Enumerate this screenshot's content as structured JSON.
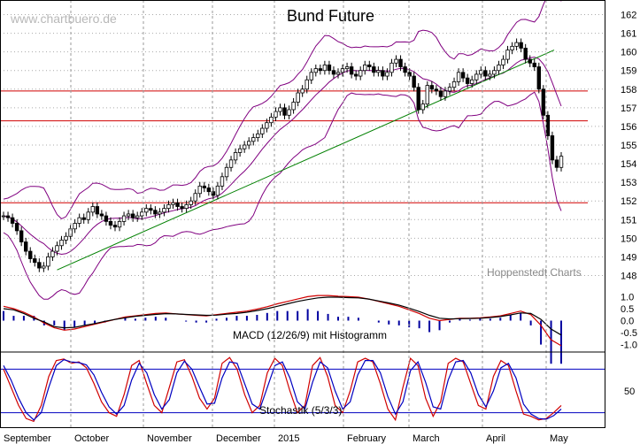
{
  "chart_data": [
    {
      "type": "candlestick",
      "title": "Bund Future",
      "watermark": "www.chartbuero.de",
      "credit": "Hoppenstedt Charts",
      "ylim": [
        147.5,
        162.5
      ],
      "y_ticks": [
        "148",
        "149",
        "150",
        "151",
        "152",
        "153",
        "154",
        "155",
        "156",
        "157",
        "158",
        "159",
        "160",
        "161",
        "162"
      ],
      "x_labels": [
        "September",
        "October",
        "November",
        "December",
        "2015",
        "February",
        "March",
        "April",
        "May"
      ],
      "horizontal_lines": [
        151.9,
        156.3,
        157.9
      ],
      "trendline": {
        "from": [
          0,
          148.1
        ],
        "to": [
          148,
          159.9
        ]
      },
      "trendline2": {
        "from": [
          12,
          148.3
        ],
        "to": [
          148,
          160.1
        ]
      },
      "ohlc_close": [
        151.2,
        151.1,
        150.8,
        150.4,
        149.8,
        149.3,
        148.9,
        148.7,
        148.4,
        148.5,
        149.0,
        149.3,
        149.6,
        149.9,
        150.1,
        150.5,
        150.8,
        151.1,
        151.0,
        151.4,
        151.7,
        151.3,
        151.2,
        150.9,
        150.7,
        150.6,
        150.9,
        151.2,
        151.3,
        151.1,
        151.2,
        151.4,
        151.6,
        151.5,
        151.3,
        151.4,
        151.6,
        151.8,
        151.9,
        151.7,
        151.6,
        151.8,
        152.0,
        152.4,
        152.8,
        152.7,
        152.5,
        152.3,
        152.8,
        153.3,
        153.8,
        154.2,
        154.6,
        154.8,
        155.0,
        155.2,
        155.4,
        155.6,
        155.9,
        156.2,
        156.5,
        156.8,
        157.0,
        156.6,
        156.9,
        157.3,
        157.8,
        158.0,
        158.5,
        158.9,
        159.1,
        159.0,
        159.3,
        159.0,
        158.8,
        158.9,
        159.1,
        159.2,
        158.8,
        158.7,
        159.0,
        159.3,
        159.2,
        158.9,
        159.0,
        158.7,
        158.9,
        159.4,
        159.6,
        159.2,
        158.9,
        158.7,
        158.1,
        156.9,
        157.2,
        158.2,
        158.0,
        157.9,
        157.6,
        157.9,
        158.1,
        158.4,
        158.9,
        158.6,
        158.3,
        158.5,
        158.8,
        159.0,
        158.7,
        158.8,
        159.0,
        159.3,
        159.6,
        160.1,
        160.3,
        160.5,
        160.2,
        159.6,
        159.4,
        159.2,
        158.0,
        156.6,
        155.5,
        154.2,
        153.8,
        154.4
      ]
    },
    {
      "type": "line",
      "title": "MACD (12/26/9) mit Histogramm",
      "ylim": [
        -1.2,
        1.2
      ],
      "y_ticks": [
        "1.0",
        "0.5",
        "0.0",
        "-0.5",
        "-1.0"
      ],
      "series": [
        {
          "values": [
            0.6,
            0.5,
            0.35,
            0.15,
            -0.1,
            -0.3,
            -0.4,
            -0.35,
            -0.25,
            -0.15,
            -0.05,
            0.05,
            0.15,
            0.2,
            0.25,
            0.3,
            0.32,
            0.28,
            0.25,
            0.22,
            0.2,
            0.25,
            0.3,
            0.35,
            0.4,
            0.48,
            0.58,
            0.7,
            0.8,
            0.9,
            1.0,
            1.05,
            1.05,
            1.02,
            1.0,
            0.98,
            0.9,
            0.8,
            0.7,
            0.6,
            0.45,
            0.3,
            0.1,
            0.0,
            0.05,
            0.1,
            0.1,
            0.12,
            0.15,
            0.2,
            0.3,
            0.4,
            0.25,
            -0.2,
            -0.8,
            -1.05
          ]
        },
        {
          "values": [
            0.5,
            0.45,
            0.3,
            0.1,
            -0.05,
            -0.25,
            -0.3,
            -0.28,
            -0.2,
            -0.12,
            -0.03,
            0.05,
            0.12,
            0.18,
            0.22,
            0.26,
            0.29,
            0.28,
            0.26,
            0.24,
            0.22,
            0.23,
            0.27,
            0.3,
            0.35,
            0.42,
            0.5,
            0.6,
            0.7,
            0.8,
            0.88,
            0.95,
            0.98,
            0.98,
            0.96,
            0.95,
            0.9,
            0.82,
            0.74,
            0.65,
            0.52,
            0.38,
            0.22,
            0.1,
            0.07,
            0.08,
            0.09,
            0.1,
            0.13,
            0.17,
            0.24,
            0.32,
            0.3,
            0.05,
            -0.35,
            -0.6
          ]
        }
      ]
    },
    {
      "type": "line",
      "title": "Stochastik (5/3/3)",
      "ylim": [
        0,
        100
      ],
      "y_ticks": [
        "50"
      ],
      "reference_lines": [
        20,
        80
      ],
      "series": [
        {
          "values": [
            80,
            55,
            30,
            12,
            8,
            30,
            70,
            92,
            94,
            88,
            90,
            82,
            60,
            35,
            20,
            15,
            45,
            85,
            92,
            60,
            30,
            20,
            55,
            90,
            93,
            70,
            40,
            25,
            40,
            88,
            96,
            80,
            45,
            20,
            30,
            75,
            95,
            85,
            50,
            20,
            30,
            85,
            96,
            70,
            30,
            20,
            50,
            90,
            95,
            90,
            60,
            25,
            10,
            55,
            95,
            85,
            40,
            15,
            35,
            88,
            95,
            90,
            60,
            30,
            25,
            70,
            92,
            85,
            50,
            18,
            15,
            10,
            12,
            20,
            30
          ]
        },
        {
          "values": [
            85,
            65,
            40,
            20,
            10,
            20,
            55,
            85,
            93,
            90,
            89,
            86,
            72,
            48,
            28,
            18,
            30,
            65,
            88,
            75,
            45,
            25,
            38,
            75,
            91,
            80,
            55,
            32,
            33,
            68,
            90,
            88,
            60,
            32,
            25,
            55,
            85,
            90,
            68,
            35,
            25,
            62,
            90,
            82,
            50,
            25,
            35,
            72,
            92,
            92,
            75,
            42,
            18,
            35,
            78,
            90,
            62,
            28,
            25,
            65,
            90,
            92,
            75,
            45,
            28,
            50,
            82,
            88,
            68,
            32,
            18,
            12,
            11,
            16,
            25
          ]
        }
      ]
    }
  ]
}
